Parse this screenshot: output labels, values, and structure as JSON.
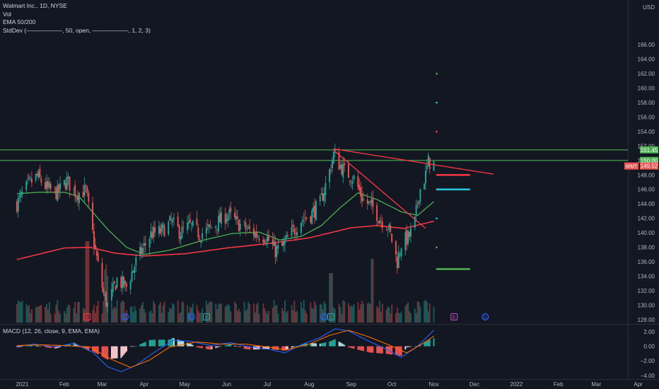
{
  "legend": {
    "title": "Walmart Inc., 1D, NYSE",
    "vol": "Vol",
    "ema": "EMA 50/200",
    "stddev": "StdDev (——————, 50, open, ——————, 1, 2, 3)",
    "macd": "MACD (12, 26, close, 9, EMA, EMA)"
  },
  "colors": {
    "background": "#131722",
    "up": "#26a69a",
    "down": "#ef5350",
    "ema50": "#4caf50",
    "ema200": "#f23645",
    "level": "#4caf50",
    "trendline": "#f23645",
    "macd_line": "#2962ff",
    "signal_line": "#ff6d00",
    "axis_text": "#b2b5be"
  },
  "chart_data": {
    "type": "candlestick",
    "symbol": "WMT",
    "currency": "USD",
    "y_ticks": [
      128,
      130,
      132,
      134,
      136,
      138,
      140,
      142,
      144,
      146,
      148,
      150,
      152,
      154,
      156,
      158,
      160,
      162,
      164,
      166
    ],
    "y_tick_labels": [
      "128.00",
      "130.00",
      "132.00",
      "134.00",
      "136.00",
      "138.00",
      "140.00",
      "142.00",
      "144.00",
      "146.00",
      "148.00",
      "150.00",
      "152.00",
      "154.00",
      "156.00",
      "158.00",
      "160.00",
      "162.00",
      "164.00",
      "166.00"
    ],
    "x_labels": [
      "2021",
      "Feb",
      "Mar",
      "Apr",
      "May",
      "Jun",
      "Jul",
      "Aug",
      "Sep",
      "Oct",
      "Nov",
      "Dec",
      "2022",
      "Feb",
      "Mar",
      "Apr"
    ],
    "x_label_dates": [
      "2021-01-01",
      "2021-02-01",
      "2021-03-01",
      "2021-04-01",
      "2021-05-01",
      "2021-06-01",
      "2021-07-01",
      "2021-08-01",
      "2021-09-01",
      "2021-10-01",
      "2021-11-01",
      "2021-12-01",
      "2022-01-01",
      "2022-02-01",
      "2022-03-01",
      "2022-04-01"
    ],
    "price_labels": [
      {
        "text": "151.45",
        "value": 151.45,
        "kind": "level"
      },
      {
        "text": "150.00",
        "value": 150.0,
        "kind": "level"
      },
      {
        "text": "WMT",
        "value": 149.52,
        "kind": "symbol"
      },
      {
        "text": "149.52",
        "value": 149.52,
        "kind": "last"
      }
    ],
    "levels": [
      151.45,
      150.0
    ],
    "last_price": 149.52,
    "ohlc_anchor_closes": [
      [
        "2020-12-28",
        144
      ],
      [
        "2021-01-05",
        146.5
      ],
      [
        "2021-01-12",
        147.8
      ],
      [
        "2021-01-20",
        146.0
      ],
      [
        "2021-01-27",
        145.5
      ],
      [
        "2021-02-03",
        147.2
      ],
      [
        "2021-02-10",
        145.4
      ],
      [
        "2021-02-17",
        145.8
      ],
      [
        "2021-02-24",
        137.5
      ],
      [
        "2021-03-02",
        131.5
      ],
      [
        "2021-03-05",
        130.0
      ],
      [
        "2021-03-12",
        133.5
      ],
      [
        "2021-03-19",
        132.5
      ],
      [
        "2021-03-26",
        136.0
      ],
      [
        "2021-04-06",
        139.8
      ],
      [
        "2021-04-14",
        140.2
      ],
      [
        "2021-04-21",
        141.5
      ],
      [
        "2021-04-28",
        140.0
      ],
      [
        "2021-05-05",
        141.0
      ],
      [
        "2021-05-12",
        139.8
      ],
      [
        "2021-05-19",
        140.5
      ],
      [
        "2021-05-26",
        141.5
      ],
      [
        "2021-06-02",
        142.6
      ],
      [
        "2021-06-09",
        141.3
      ],
      [
        "2021-06-16",
        140.5
      ],
      [
        "2021-06-23",
        139.8
      ],
      [
        "2021-06-30",
        139.5
      ],
      [
        "2021-07-07",
        137.5
      ],
      [
        "2021-07-12",
        138.0
      ],
      [
        "2021-07-19",
        140.0
      ],
      [
        "2021-07-26",
        141.8
      ],
      [
        "2021-08-02",
        142.5
      ],
      [
        "2021-08-09",
        144.0
      ],
      [
        "2021-08-16",
        148.5
      ],
      [
        "2021-08-19",
        150.8
      ],
      [
        "2021-08-23",
        149.5
      ],
      [
        "2021-08-27",
        148.5
      ],
      [
        "2021-09-03",
        147.5
      ],
      [
        "2021-09-10",
        144.5
      ],
      [
        "2021-09-17",
        143.5
      ],
      [
        "2021-09-22",
        142.0
      ],
      [
        "2021-09-28",
        141.0
      ],
      [
        "2021-10-01",
        139.0
      ],
      [
        "2021-10-05",
        136.0
      ],
      [
        "2021-10-08",
        138.5
      ],
      [
        "2021-10-14",
        139.5
      ],
      [
        "2021-10-18",
        141.5
      ],
      [
        "2021-10-21",
        145.5
      ],
      [
        "2021-10-26",
        148.0
      ],
      [
        "2021-10-28",
        149.8
      ],
      [
        "2021-11-01",
        149.52
      ]
    ],
    "ema50_anchors": [
      [
        "2020-12-28",
        145.4
      ],
      [
        "2021-01-13",
        145.6
      ],
      [
        "2021-02-01",
        145.6
      ],
      [
        "2021-02-12",
        145.0
      ],
      [
        "2021-03-05",
        140.5
      ],
      [
        "2021-03-19",
        138.0
      ],
      [
        "2021-04-01",
        137.0
      ],
      [
        "2021-04-20",
        137.6
      ],
      [
        "2021-05-15",
        139.0
      ],
      [
        "2021-06-05",
        139.9
      ],
      [
        "2021-06-25",
        140.1
      ],
      [
        "2021-07-10",
        139.0
      ],
      [
        "2021-07-26",
        139.5
      ],
      [
        "2021-08-10",
        141.0
      ],
      [
        "2021-08-24",
        143.5
      ],
      [
        "2021-09-06",
        145.5
      ],
      [
        "2021-09-20",
        144.6
      ],
      [
        "2021-10-08",
        142.9
      ],
      [
        "2021-10-20",
        142.4
      ],
      [
        "2021-11-01",
        144.3
      ]
    ],
    "ema200_anchors": [
      [
        "2020-12-28",
        136.3
      ],
      [
        "2021-02-01",
        137.9
      ],
      [
        "2021-02-20",
        138.0
      ],
      [
        "2021-03-10",
        137.2
      ],
      [
        "2021-04-01",
        136.8
      ],
      [
        "2021-05-01",
        137.1
      ],
      [
        "2021-06-01",
        137.9
      ],
      [
        "2021-07-01",
        138.5
      ],
      [
        "2021-08-01",
        139.3
      ],
      [
        "2021-09-01",
        140.7
      ],
      [
        "2021-09-20",
        141.0
      ],
      [
        "2021-10-10",
        140.6
      ],
      [
        "2021-11-01",
        141.6
      ]
    ],
    "trendlines": [
      {
        "from": [
          "2021-08-19",
          151.6
        ],
        "to": [
          "2021-12-15",
          148.1
        ]
      },
      {
        "from": [
          "2021-08-19",
          151.4
        ],
        "to": [
          "2021-10-26",
          140.6
        ]
      }
    ],
    "stddev_marks": [
      {
        "value": 162.0,
        "color": "#4caf50",
        "width": "dot"
      },
      {
        "value": 158.0,
        "color": "#26c6da",
        "width": "dot"
      },
      {
        "value": 154.0,
        "color": "#f23645",
        "width": "dot"
      },
      {
        "value": 148.0,
        "color": "#f23645",
        "width": "bar"
      },
      {
        "value": 146.0,
        "color": "#26c6da",
        "width": "bar"
      },
      {
        "value": 142.0,
        "color": "#26c6da",
        "width": "dot"
      },
      {
        "value": 138.0,
        "color": "#4caf50",
        "width": "dot"
      },
      {
        "value": 135.0,
        "color": "#4caf50",
        "width": "bar"
      }
    ],
    "event_markers": [
      {
        "date": "2021-02-18",
        "letter": "E",
        "color": "#f23645"
      },
      {
        "date": "2021-03-18",
        "letter": "D",
        "color": "#2962ff"
      },
      {
        "date": "2021-05-06",
        "letter": "D",
        "color": "#2962ff"
      },
      {
        "date": "2021-05-17",
        "letter": "E",
        "color": "#26a69a"
      },
      {
        "date": "2021-08-12",
        "letter": "D",
        "color": "#2962ff"
      },
      {
        "date": "2021-08-17",
        "letter": "E",
        "color": "#26a69a"
      },
      {
        "date": "2021-11-16",
        "letter": "E",
        "color": "#ab47bc"
      },
      {
        "date": "2021-12-09",
        "letter": "D",
        "color": "#2962ff"
      }
    ],
    "macd": {
      "y_ticks": [
        2.0,
        0.0,
        -2.0,
        -4.0
      ],
      "y_tick_labels": [
        "2.00",
        "0.00",
        "−2.00",
        "−4.00"
      ],
      "macd_anchors": [
        [
          "2020-12-28",
          0.0
        ],
        [
          "2021-01-10",
          0.3
        ],
        [
          "2021-01-25",
          -0.1
        ],
        [
          "2021-02-08",
          0.4
        ],
        [
          "2021-02-22",
          -0.8
        ],
        [
          "2021-03-05",
          -2.8
        ],
        [
          "2021-03-15",
          -3.5
        ],
        [
          "2021-03-26",
          -2.6
        ],
        [
          "2021-04-08",
          -0.9
        ],
        [
          "2021-04-22",
          0.8
        ],
        [
          "2021-05-05",
          0.7
        ],
        [
          "2021-05-20",
          0.1
        ],
        [
          "2021-06-04",
          0.5
        ],
        [
          "2021-06-18",
          -0.1
        ],
        [
          "2021-07-02",
          -0.4
        ],
        [
          "2021-07-14",
          -0.9
        ],
        [
          "2021-07-26",
          0.2
        ],
        [
          "2021-08-09",
          1.2
        ],
        [
          "2021-08-20",
          2.4
        ],
        [
          "2021-08-30",
          2.1
        ],
        [
          "2021-09-14",
          0.7
        ],
        [
          "2021-09-28",
          -0.5
        ],
        [
          "2021-10-08",
          -1.5
        ],
        [
          "2021-10-20",
          0.0
        ],
        [
          "2021-11-01",
          2.2
        ]
      ],
      "signal_anchors": [
        [
          "2020-12-28",
          0.1
        ],
        [
          "2021-01-15",
          0.2
        ],
        [
          "2021-02-01",
          0.1
        ],
        [
          "2021-02-20",
          -0.1
        ],
        [
          "2021-03-08",
          -1.8
        ],
        [
          "2021-03-22",
          -2.9
        ],
        [
          "2021-04-05",
          -1.9
        ],
        [
          "2021-04-20",
          -0.1
        ],
        [
          "2021-05-10",
          0.6
        ],
        [
          "2021-05-28",
          0.3
        ],
        [
          "2021-06-15",
          0.3
        ],
        [
          "2021-07-01",
          -0.1
        ],
        [
          "2021-07-15",
          -0.5
        ],
        [
          "2021-08-01",
          0.3
        ],
        [
          "2021-08-16",
          1.5
        ],
        [
          "2021-08-30",
          2.2
        ],
        [
          "2021-09-14",
          1.3
        ],
        [
          "2021-09-30",
          0.1
        ],
        [
          "2021-10-12",
          -0.9
        ],
        [
          "2021-10-26",
          0.6
        ],
        [
          "2021-11-01",
          1.4
        ]
      ]
    }
  }
}
